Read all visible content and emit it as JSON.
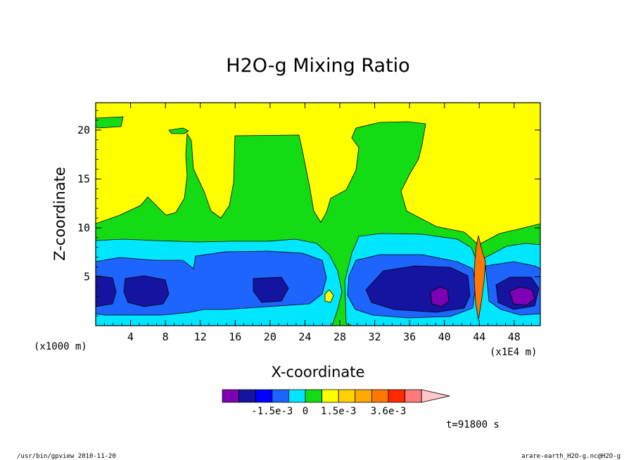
{
  "chart_data": {
    "type": "heatmap",
    "title": "H2O-g Mixing Ratio",
    "xlabel": "X-coordinate",
    "ylabel": "Z-coordinate",
    "x_unit_left": "(x1000 m)",
    "x_unit_right": "(x1E4 m)",
    "xlim": [
      0,
      51
    ],
    "ylim": [
      0,
      22.8
    ],
    "x_ticks": [
      4,
      8,
      12,
      16,
      20,
      24,
      28,
      32,
      36,
      40,
      44,
      48
    ],
    "y_ticks": [
      5,
      10,
      15,
      20
    ],
    "colorbar": {
      "colors": [
        "#7d00b4",
        "#1414a0",
        "#0000ff",
        "#1e64ff",
        "#00e6ff",
        "#14dc14",
        "#ffff00",
        "#ffd200",
        "#ffaa00",
        "#ff7800",
        "#ff2a00",
        "#ff7a7a",
        "#ffc8c8"
      ],
      "labels": [
        "-1.5e-3",
        "0",
        "1.5e-3",
        "3.6e-3"
      ]
    },
    "regions": {
      "upper_layer": "#ffff00",
      "mid_layer": "#14dc14",
      "lower_band": "#00e6ff",
      "low_core": "#1e64ff",
      "deep_core": "#1414a0",
      "minimum": "#7d00b4",
      "high_spike": "#ff7800"
    },
    "time_label": "t=91800 s"
  },
  "footer": {
    "left": "/usr/bin/gpview   2010-11-20",
    "right": "arare-earth_H2O-g.nc@H2O-g"
  }
}
